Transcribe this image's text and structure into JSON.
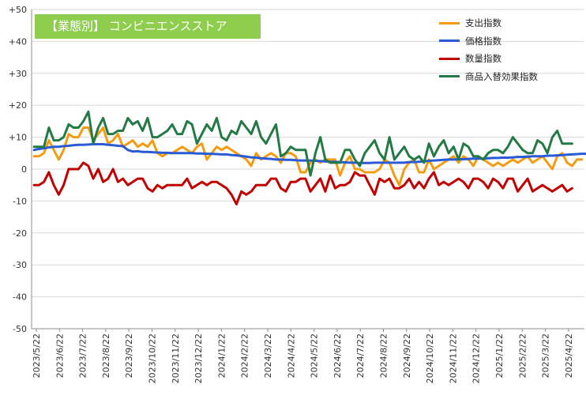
{
  "chart_data": {
    "type": "line",
    "title": "【業態別】 コンビニエンスストア",
    "ylim": [
      -50,
      50
    ],
    "y_ticks": [
      "-50",
      "-40",
      "-30",
      "-20",
      "-10",
      "0",
      "+10",
      "+20",
      "+30",
      "+40",
      "+50"
    ],
    "grid": "horizontal",
    "legend_position": "top-right",
    "x_labels": [
      "2023/5/22",
      "2023/6/22",
      "2023/7/22",
      "2023/8/22",
      "2023/9/22",
      "2023/10/22",
      "2023/11/22",
      "2023/12/22",
      "2024/1/22",
      "2024/2/22",
      "2024/3/22",
      "2024/4/22",
      "2024/5/22",
      "2024/6/22",
      "2024/7/22",
      "2024/8/22",
      "2024/9/22",
      "2024/10/22",
      "2024/11/22",
      "2024/12/22",
      "2025/1/22",
      "2025/2/22",
      "2025/3/22",
      "2025/4/22"
    ],
    "series": [
      {
        "name": "支出指数",
        "color": "#f39c12",
        "values": [
          4,
          4,
          5,
          9,
          6,
          3,
          6,
          11,
          10,
          10,
          13,
          13,
          9,
          11,
          13,
          8,
          9,
          11,
          7,
          8,
          9,
          7,
          8,
          7,
          9,
          5,
          4,
          5,
          5,
          6,
          7,
          6,
          5,
          7,
          8,
          3,
          5,
          7,
          6,
          7,
          6,
          5,
          4,
          3,
          1,
          5,
          3,
          4,
          5,
          4,
          2,
          5,
          5,
          4,
          -1,
          -1,
          2,
          3,
          2,
          3,
          3,
          3,
          -2,
          2,
          4,
          0,
          0,
          -1,
          -1,
          -1,
          0,
          3,
          2,
          -2,
          -5,
          0,
          2,
          3,
          -1,
          -1,
          3,
          0,
          1,
          2,
          3,
          4,
          2,
          4,
          3,
          1,
          4,
          3,
          2,
          1,
          2,
          1,
          2,
          3,
          2,
          3,
          4,
          2,
          3,
          4,
          2,
          0,
          4,
          5,
          2,
          1,
          3,
          3
        ]
      },
      {
        "name": "価格指数",
        "color": "#2a5bd7",
        "values": [
          6,
          6.3,
          6.5,
          6.8,
          7,
          7,
          7.2,
          7.3,
          7.5,
          7.6,
          7.6,
          7.7,
          7.8,
          7.8,
          7.8,
          7.6,
          7.5,
          7.3,
          7.2,
          6,
          5.5,
          5.6,
          5.4,
          5.4,
          5.3,
          5.2,
          5.1,
          5.1,
          5,
          5,
          5,
          5,
          5,
          4.9,
          4.9,
          4.8,
          4.8,
          4.7,
          4.6,
          4.6,
          4.4,
          4.3,
          4.1,
          3.9,
          3.7,
          3.6,
          3.4,
          3.3,
          3.2,
          3,
          3,
          2.9,
          2.9,
          2.8,
          2.7,
          2.7,
          2.7,
          2.6,
          2.5,
          2.4,
          2.3,
          2.3,
          2.2,
          2.1,
          2,
          2,
          1.9,
          1.9,
          1.9,
          2,
          2,
          2,
          2,
          2,
          2,
          2,
          2.2,
          2.2,
          2.3,
          2.4,
          2.6,
          2.7,
          2.8,
          2.9,
          3,
          3,
          3.1,
          3.1,
          3.2,
          3.3,
          3.3,
          3.3,
          3.4,
          3.5,
          3.5,
          3.6,
          3.6,
          3.7,
          3.8,
          3.8,
          3.9,
          4,
          4,
          4,
          4.2,
          4.2,
          4.3,
          4.4,
          4.5,
          4.6,
          4.7,
          4.8,
          4.8,
          4.9
        ]
      },
      {
        "name": "数量指数",
        "color": "#c00000",
        "values": [
          -5,
          -5,
          -4,
          -1,
          -5,
          -8,
          -5,
          0,
          0,
          0,
          2,
          1,
          -3,
          0,
          -4,
          -3,
          0,
          -4,
          -3,
          -5,
          -4,
          -3,
          -3,
          -6,
          -7,
          -5,
          -6,
          -5,
          -5,
          -5,
          -5,
          -3,
          -6,
          -5,
          -4,
          -5,
          -4,
          -4,
          -5,
          -6,
          -8,
          -11,
          -7,
          -8,
          -7,
          -5,
          -5,
          -5,
          -3,
          -3,
          -6,
          -7,
          -4,
          -4,
          -3,
          -3,
          -7,
          -5,
          -3,
          -7,
          -2,
          -6,
          -5,
          -5,
          -4,
          -1,
          -2,
          -2,
          -5,
          -8,
          -3,
          -4,
          -3,
          -6,
          -6,
          -5,
          -3,
          -6,
          -4,
          -6,
          -3,
          -1,
          -5,
          -4,
          -5,
          -4,
          -3,
          -4,
          -6,
          -3,
          -3,
          -4,
          -6,
          -3,
          -4,
          -6,
          -3,
          -3,
          -7,
          -5,
          -3,
          -7,
          -6,
          -5,
          -6,
          -7,
          -6,
          -5,
          -7,
          -6
        ]
      },
      {
        "name": "商品入替効果指数",
        "color": "#237a45",
        "values": [
          7,
          7,
          7,
          13,
          9,
          9,
          10,
          14,
          13,
          13,
          15,
          18,
          8,
          13,
          16,
          11,
          11,
          12,
          12,
          16,
          14,
          15,
          12,
          16,
          10,
          10,
          11,
          12,
          14,
          11,
          11,
          15,
          14,
          8,
          11,
          14,
          12,
          16,
          10,
          9,
          12,
          11,
          15,
          13,
          11,
          15,
          10,
          8,
          11,
          14,
          4,
          5,
          7,
          6,
          6,
          6,
          -2,
          5,
          10,
          3,
          2,
          2,
          2,
          6,
          6,
          3,
          1,
          5,
          7,
          9,
          5,
          3,
          10,
          3,
          5,
          7,
          4,
          3,
          4,
          2,
          8,
          4,
          7,
          9,
          5,
          7,
          3,
          8,
          7,
          4,
          4,
          3,
          5,
          6,
          6,
          5,
          7,
          10,
          8,
          6,
          5,
          5,
          9,
          8,
          5,
          10,
          12,
          8,
          8,
          8
        ]
      }
    ]
  }
}
